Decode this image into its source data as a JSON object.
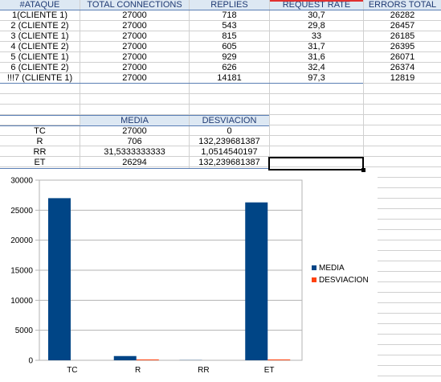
{
  "table1": {
    "headers": [
      "#ATAQUE",
      "TOTAL CONNECTIONS",
      "REPLIES",
      "REQUEST RATE",
      "ERRORS TOTAL"
    ],
    "rows": [
      [
        "1(CLIENTE 1)",
        "27000",
        "718",
        "30,7",
        "26282"
      ],
      [
        "2 (CLIENTE 2)",
        "27000",
        "543",
        "29,8",
        "26457"
      ],
      [
        "3 (CLIENTE 1)",
        "27000",
        "815",
        "33",
        "26185"
      ],
      [
        "4 (CLIENTE 2)",
        "27000",
        "605",
        "31,7",
        "26395"
      ],
      [
        "5 (CLIENTE 1)",
        "27000",
        "929",
        "31,6",
        "26071"
      ],
      [
        "6 (CLIENTE 2)",
        "27000",
        "626",
        "32,4",
        "26374"
      ],
      [
        "!!!7 (CLIENTE 1)",
        "27000",
        "14181",
        "97,3",
        "12819"
      ]
    ]
  },
  "table2": {
    "headers": [
      "MEDIA",
      "DESVIACION"
    ],
    "rows": [
      [
        "TC",
        "27000",
        "0"
      ],
      [
        "R",
        "706",
        "132,239681387"
      ],
      [
        "RR",
        "31,5333333333",
        "1,0514540197"
      ],
      [
        "ET",
        "26294",
        "132,239681387"
      ]
    ]
  },
  "chart_data": {
    "type": "bar",
    "categories": [
      "TC",
      "R",
      "RR",
      "ET"
    ],
    "series": [
      {
        "name": "MEDIA",
        "values": [
          27000,
          706,
          31.53,
          26294
        ],
        "color": "#004586"
      },
      {
        "name": "DESVIACION",
        "values": [
          0,
          132.24,
          1.05,
          132.24
        ],
        "color": "#ff420e"
      }
    ],
    "ylim": [
      0,
      30000
    ],
    "yticks": [
      "0",
      "5000",
      "10000",
      "15000",
      "20000",
      "25000",
      "30000"
    ],
    "grid": true,
    "legend": "right"
  }
}
